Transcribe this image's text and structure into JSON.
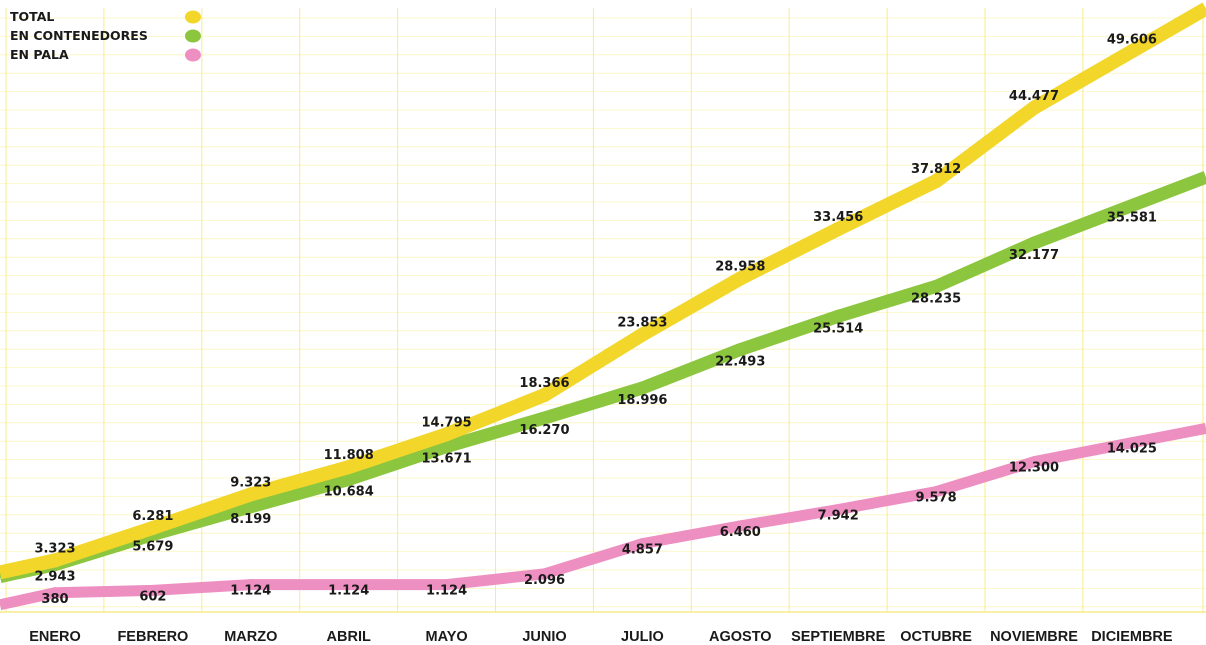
{
  "chart_data": {
    "type": "line",
    "categories": [
      "ENERO",
      "FEBRERO",
      "MARZO",
      "ABRIL",
      "MAYO",
      "JUNIO",
      "JULIO",
      "AGOSTO",
      "SEPTIEMBRE",
      "OCTUBRE",
      "NOVIEMBRE",
      "DICIEMBRE"
    ],
    "series": [
      {
        "name": "TOTAL",
        "color": "#f2d62a",
        "values": [
          3323,
          6281,
          9323,
          11808,
          14795,
          18366,
          23853,
          28958,
          33456,
          37812,
          44477,
          49606
        ],
        "labels": [
          "3.323",
          "6.281",
          "9.323",
          "11.808",
          "14.795",
          "18.366",
          "23.853",
          "28.958",
          "33.456",
          "37.812",
          "44.477",
          "49.606"
        ]
      },
      {
        "name": "EN CONTENEDORES",
        "color": "#8cc63f",
        "values": [
          2943,
          5679,
          8199,
          10684,
          13671,
          16270,
          18996,
          22493,
          25514,
          28235,
          32177,
          35581
        ],
        "labels": [
          "2.943",
          "5.679",
          "8.199",
          "10.684",
          "13.671",
          "16.270",
          "18.996",
          "22.493",
          "25.514",
          "28.235",
          "32.177",
          "35.581"
        ]
      },
      {
        "name": "EN PALA",
        "color": "#ee8fc2",
        "values": [
          380,
          602,
          1124,
          1124,
          1124,
          2096,
          4857,
          6460,
          7942,
          9578,
          12300,
          14025
        ],
        "labels": [
          "380",
          "602",
          "1.124",
          "1.124",
          "1.124",
          "2.096",
          "4.857",
          "6.460",
          "7.942",
          "9.578",
          "12.300",
          "14.025"
        ]
      }
    ],
    "legend_position": "top-left",
    "grid": true,
    "grid_color": "#f7ec8a",
    "title": "",
    "xlabel": "",
    "ylabel": ""
  }
}
